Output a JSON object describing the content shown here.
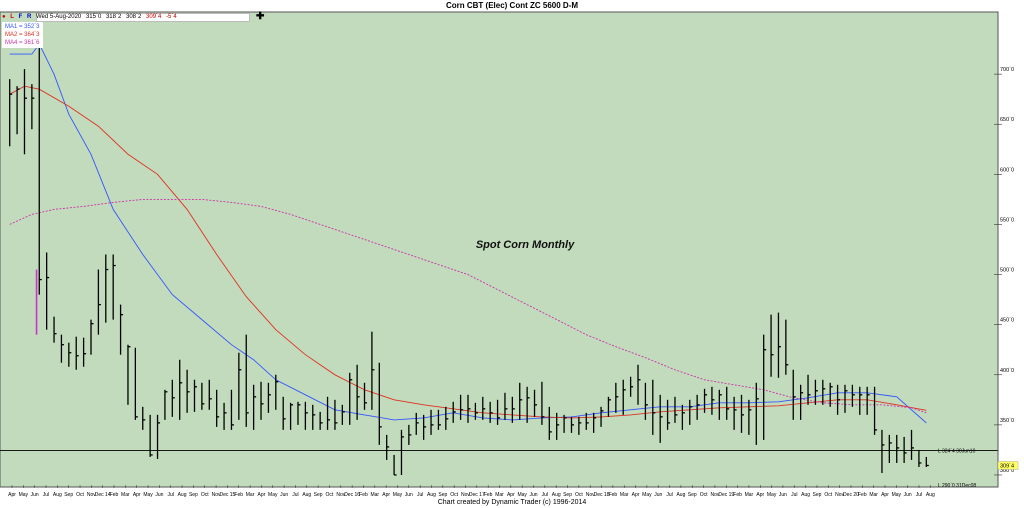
{
  "title": "Corn CBT (Elec) Cont ZC 5600 D-M",
  "footer": "Chart created by Dynamic Trader  (c) 1996-2014",
  "toolbar": {
    "dot": "●",
    "l": "L",
    "f": "F",
    "r": "R",
    "crosshair": "✚"
  },
  "header_info": {
    "date": "Wed 5-Aug-2020",
    "open": "315`0",
    "high": "318`2",
    "low": "308`2",
    "close": "309`4",
    "change": "-5`4"
  },
  "ma_legend": [
    {
      "label": "MA1 = 352`3",
      "color": "#3355ff"
    },
    {
      "label": "MA2 = 364`3",
      "color": "#e03020"
    },
    {
      "label": "MA4 = 361`6",
      "color": "#cc33aa"
    }
  ],
  "annotation": "Spot Corn Monthly",
  "reference_levels": [
    {
      "value": 324.5,
      "label": "L 324`4 30Jun10"
    },
    {
      "value": 290,
      "label": "L 290`0 31Dec08"
    }
  ],
  "last_price_label": "309`4",
  "chart_data": {
    "type": "ohlc",
    "title": "Corn CBT (Elec) Cont ZC 5600 D-M",
    "ylim": [
      290,
      760
    ],
    "y_ticks": [
      {
        "value": 700,
        "label": "700`0"
      },
      {
        "value": 650,
        "label": "650`0"
      },
      {
        "value": 600,
        "label": "600`0"
      },
      {
        "value": 550,
        "label": "550`0"
      },
      {
        "value": 500,
        "label": "500`0"
      },
      {
        "value": 450,
        "label": "450`0"
      },
      {
        "value": 400,
        "label": "400`0"
      },
      {
        "value": 350,
        "label": "350`0"
      },
      {
        "value": 300,
        "label": "300`0"
      }
    ],
    "x_labels": [
      "Apr",
      "May",
      "Jun",
      "Jul",
      "Aug",
      "Sep",
      "Oct",
      "Nov",
      "Dec 14",
      "Feb",
      "Mar",
      "Apr",
      "May",
      "Jun",
      "Jul",
      "Aug",
      "Sep",
      "Oct",
      "Nov",
      "Dec 15",
      "Feb",
      "Mar",
      "Apr",
      "May",
      "Jun",
      "Jul",
      "Aug",
      "Sep",
      "Oct",
      "Nov",
      "Dec 16",
      "Feb",
      "Mar",
      "Apr",
      "May",
      "Jun",
      "Jul",
      "Aug",
      "Sep",
      "Oct",
      "Nov",
      "Dec 17",
      "Feb",
      "Mar",
      "Apr",
      "May",
      "Jun",
      "Jul",
      "Aug",
      "Sep",
      "Oct",
      "Nov",
      "Dec 18",
      "Feb",
      "Mar",
      "Apr",
      "May",
      "Jun",
      "Jul",
      "Aug",
      "Sep",
      "Oct",
      "Nov",
      "Dec 19",
      "Feb",
      "Mar",
      "Apr",
      "May",
      "Jun",
      "Jul",
      "Aug",
      "Sep",
      "Oct",
      "Nov",
      "Dec 20",
      "Feb",
      "Mar",
      "Apr",
      "May",
      "Jun",
      "Jul",
      "Aug"
    ],
    "bars": [
      {
        "x": 0,
        "h": 695,
        "l": 628,
        "c": 680
      },
      {
        "x": 1,
        "h": 688,
        "l": 640,
        "c": 685
      },
      {
        "x": 2,
        "h": 705,
        "l": 620,
        "c": 676
      },
      {
        "x": 3,
        "h": 690,
        "l": 645,
        "c": 676
      },
      {
        "x": 4,
        "h": 730,
        "l": 480,
        "c": 495
      },
      {
        "x": 5,
        "h": 522,
        "l": 445,
        "c": 497
      },
      {
        "x": 6,
        "h": 458,
        "l": 432,
        "c": 441
      },
      {
        "x": 7,
        "h": 440,
        "l": 412,
        "c": 430
      },
      {
        "x": 8,
        "h": 432,
        "l": 408,
        "c": 422
      },
      {
        "x": 9,
        "h": 438,
        "l": 405,
        "c": 419
      },
      {
        "x": 10,
        "h": 437,
        "l": 408,
        "c": 421
      },
      {
        "x": 11,
        "h": 455,
        "l": 420,
        "c": 451
      },
      {
        "x": 12,
        "h": 505,
        "l": 440,
        "c": 470
      },
      {
        "x": 13,
        "h": 520,
        "l": 452,
        "c": 505
      },
      {
        "x": 14,
        "h": 520,
        "l": 455,
        "c": 509
      },
      {
        "x": 15,
        "h": 470,
        "l": 420,
        "c": 460
      },
      {
        "x": 16,
        "h": 430,
        "l": 370,
        "c": 428
      },
      {
        "x": 17,
        "h": 427,
        "l": 355,
        "c": 358
      },
      {
        "x": 18,
        "h": 368,
        "l": 345,
        "c": 355
      },
      {
        "x": 19,
        "h": 360,
        "l": 318,
        "c": 320
      },
      {
        "x": 20,
        "h": 360,
        "l": 316,
        "c": 352
      },
      {
        "x": 21,
        "h": 385,
        "l": 355,
        "c": 383
      },
      {
        "x": 22,
        "h": 395,
        "l": 358,
        "c": 377
      },
      {
        "x": 23,
        "h": 415,
        "l": 355,
        "c": 392
      },
      {
        "x": 24,
        "h": 405,
        "l": 362,
        "c": 383
      },
      {
        "x": 25,
        "h": 395,
        "l": 363,
        "c": 388
      },
      {
        "x": 26,
        "h": 392,
        "l": 365,
        "c": 371
      },
      {
        "x": 27,
        "h": 395,
        "l": 365,
        "c": 376
      },
      {
        "x": 28,
        "h": 385,
        "l": 348,
        "c": 358
      },
      {
        "x": 29,
        "h": 372,
        "l": 345,
        "c": 362
      },
      {
        "x": 30,
        "h": 385,
        "l": 345,
        "c": 350
      },
      {
        "x": 31,
        "h": 422,
        "l": 355,
        "c": 405
      },
      {
        "x": 32,
        "h": 440,
        "l": 348,
        "c": 362
      },
      {
        "x": 33,
        "h": 390,
        "l": 345,
        "c": 378
      },
      {
        "x": 34,
        "h": 393,
        "l": 355,
        "c": 371
      },
      {
        "x": 35,
        "h": 392,
        "l": 362,
        "c": 380
      },
      {
        "x": 36,
        "h": 400,
        "l": 365,
        "c": 393
      },
      {
        "x": 37,
        "h": 378,
        "l": 345,
        "c": 356
      },
      {
        "x": 38,
        "h": 372,
        "l": 345,
        "c": 370
      },
      {
        "x": 39,
        "h": 373,
        "l": 350,
        "c": 370
      },
      {
        "x": 40,
        "h": 373,
        "l": 345,
        "c": 362
      },
      {
        "x": 41,
        "h": 370,
        "l": 345,
        "c": 360
      },
      {
        "x": 42,
        "h": 363,
        "l": 345,
        "c": 352
      },
      {
        "x": 43,
        "h": 378,
        "l": 345,
        "c": 355
      },
      {
        "x": 44,
        "h": 375,
        "l": 345,
        "c": 352
      },
      {
        "x": 45,
        "h": 370,
        "l": 350,
        "c": 363
      },
      {
        "x": 46,
        "h": 402,
        "l": 350,
        "c": 395
      },
      {
        "x": 47,
        "h": 410,
        "l": 355,
        "c": 378
      },
      {
        "x": 48,
        "h": 392,
        "l": 365,
        "c": 372
      },
      {
        "x": 49,
        "h": 443,
        "l": 365,
        "c": 405
      },
      {
        "x": 50,
        "h": 412,
        "l": 330,
        "c": 348
      },
      {
        "x": 51,
        "h": 340,
        "l": 315,
        "c": 328
      },
      {
        "x": 52,
        "h": 320,
        "l": 300,
        "c": 300
      },
      {
        "x": 53,
        "h": 345,
        "l": 300,
        "c": 338
      },
      {
        "x": 54,
        "h": 350,
        "l": 330,
        "c": 340
      },
      {
        "x": 55,
        "h": 362,
        "l": 340,
        "c": 352
      },
      {
        "x": 56,
        "h": 360,
        "l": 335,
        "c": 348
      },
      {
        "x": 57,
        "h": 365,
        "l": 340,
        "c": 350
      },
      {
        "x": 58,
        "h": 365,
        "l": 345,
        "c": 350
      },
      {
        "x": 59,
        "h": 368,
        "l": 345,
        "c": 356
      },
      {
        "x": 60,
        "h": 373,
        "l": 352,
        "c": 363
      },
      {
        "x": 61,
        "h": 380,
        "l": 355,
        "c": 365
      },
      {
        "x": 62,
        "h": 380,
        "l": 352,
        "c": 366
      },
      {
        "x": 63,
        "h": 372,
        "l": 355,
        "c": 362
      },
      {
        "x": 64,
        "h": 378,
        "l": 355,
        "c": 366
      },
      {
        "x": 65,
        "h": 373,
        "l": 352,
        "c": 362
      },
      {
        "x": 66,
        "h": 375,
        "l": 350,
        "c": 357
      },
      {
        "x": 67,
        "h": 382,
        "l": 355,
        "c": 366
      },
      {
        "x": 68,
        "h": 378,
        "l": 352,
        "c": 366
      },
      {
        "x": 69,
        "h": 392,
        "l": 355,
        "c": 375
      },
      {
        "x": 70,
        "h": 388,
        "l": 352,
        "c": 377
      },
      {
        "x": 71,
        "h": 385,
        "l": 358,
        "c": 370
      },
      {
        "x": 72,
        "h": 393,
        "l": 350,
        "c": 358
      },
      {
        "x": 73,
        "h": 368,
        "l": 335,
        "c": 343
      },
      {
        "x": 74,
        "h": 362,
        "l": 335,
        "c": 350
      },
      {
        "x": 75,
        "h": 360,
        "l": 342,
        "c": 357
      },
      {
        "x": 76,
        "h": 358,
        "l": 342,
        "c": 350
      },
      {
        "x": 77,
        "h": 358,
        "l": 340,
        "c": 352
      },
      {
        "x": 78,
        "h": 362,
        "l": 345,
        "c": 352
      },
      {
        "x": 79,
        "h": 362,
        "l": 342,
        "c": 357
      },
      {
        "x": 80,
        "h": 368,
        "l": 348,
        "c": 364
      },
      {
        "x": 81,
        "h": 378,
        "l": 358,
        "c": 375
      },
      {
        "x": 82,
        "h": 392,
        "l": 362,
        "c": 378
      },
      {
        "x": 83,
        "h": 395,
        "l": 360,
        "c": 385
      },
      {
        "x": 84,
        "h": 398,
        "l": 378,
        "c": 388
      },
      {
        "x": 85,
        "h": 410,
        "l": 370,
        "c": 395
      },
      {
        "x": 86,
        "h": 392,
        "l": 355,
        "c": 370
      },
      {
        "x": 87,
        "h": 395,
        "l": 340,
        "c": 362
      },
      {
        "x": 88,
        "h": 380,
        "l": 332,
        "c": 358
      },
      {
        "x": 89,
        "h": 375,
        "l": 345,
        "c": 352
      },
      {
        "x": 90,
        "h": 378,
        "l": 352,
        "c": 360
      },
      {
        "x": 91,
        "h": 370,
        "l": 345,
        "c": 362
      },
      {
        "x": 92,
        "h": 375,
        "l": 350,
        "c": 368
      },
      {
        "x": 93,
        "h": 380,
        "l": 355,
        "c": 370
      },
      {
        "x": 94,
        "h": 386,
        "l": 362,
        "c": 380
      },
      {
        "x": 95,
        "h": 388,
        "l": 360,
        "c": 375
      },
      {
        "x": 96,
        "h": 385,
        "l": 355,
        "c": 380
      },
      {
        "x": 97,
        "h": 388,
        "l": 355,
        "c": 366
      },
      {
        "x": 98,
        "h": 378,
        "l": 345,
        "c": 365
      },
      {
        "x": 99,
        "h": 380,
        "l": 342,
        "c": 360
      },
      {
        "x": 100,
        "h": 375,
        "l": 340,
        "c": 365
      },
      {
        "x": 101,
        "h": 392,
        "l": 330,
        "c": 376
      },
      {
        "x": 102,
        "h": 440,
        "l": 335,
        "c": 425
      },
      {
        "x": 103,
        "h": 460,
        "l": 398,
        "c": 420
      },
      {
        "x": 104,
        "h": 462,
        "l": 397,
        "c": 428
      },
      {
        "x": 105,
        "h": 455,
        "l": 400,
        "c": 410
      },
      {
        "x": 106,
        "h": 405,
        "l": 355,
        "c": 378
      },
      {
        "x": 107,
        "h": 390,
        "l": 355,
        "c": 382
      },
      {
        "x": 108,
        "h": 400,
        "l": 370,
        "c": 380
      },
      {
        "x": 109,
        "h": 395,
        "l": 370,
        "c": 384
      },
      {
        "x": 110,
        "h": 395,
        "l": 370,
        "c": 386
      },
      {
        "x": 111,
        "h": 392,
        "l": 368,
        "c": 388
      },
      {
        "x": 112,
        "h": 390,
        "l": 360,
        "c": 375
      },
      {
        "x": 113,
        "h": 390,
        "l": 362,
        "c": 384
      },
      {
        "x": 114,
        "h": 390,
        "l": 368,
        "c": 380
      },
      {
        "x": 115,
        "h": 388,
        "l": 360,
        "c": 380
      },
      {
        "x": 116,
        "h": 388,
        "l": 360,
        "c": 380
      },
      {
        "x": 117,
        "h": 388,
        "l": 340,
        "c": 345
      },
      {
        "x": 118,
        "h": 345,
        "l": 302,
        "c": 330
      },
      {
        "x": 119,
        "h": 340,
        "l": 312,
        "c": 332
      },
      {
        "x": 120,
        "h": 340,
        "l": 312,
        "c": 327
      },
      {
        "x": 121,
        "h": 338,
        "l": 312,
        "c": 322
      },
      {
        "x": 122,
        "h": 345,
        "l": 315,
        "c": 327
      },
      {
        "x": 123,
        "h": 325,
        "l": 308,
        "c": 312
      },
      {
        "x": 124,
        "h": 318,
        "l": 308,
        "c": 309.5
      }
    ],
    "ma_series": [
      {
        "label": "MA1 = 352`3",
        "color": "#3355ff",
        "dashed": false,
        "points": [
          [
            0,
            720
          ],
          [
            3,
            720
          ],
          [
            4,
            730
          ],
          [
            6,
            700
          ],
          [
            8,
            660
          ],
          [
            11,
            620
          ],
          [
            14,
            565
          ],
          [
            18,
            520
          ],
          [
            22,
            480
          ],
          [
            26,
            455
          ],
          [
            30,
            430
          ],
          [
            33,
            415
          ],
          [
            36,
            395
          ],
          [
            40,
            380
          ],
          [
            44,
            365
          ],
          [
            48,
            360
          ],
          [
            52,
            355
          ],
          [
            56,
            357
          ],
          [
            60,
            362
          ],
          [
            64,
            357
          ],
          [
            68,
            355
          ],
          [
            72,
            357
          ],
          [
            76,
            358
          ],
          [
            80,
            362
          ],
          [
            84,
            365
          ],
          [
            88,
            368
          ],
          [
            92,
            368
          ],
          [
            96,
            372
          ],
          [
            100,
            372
          ],
          [
            104,
            373
          ],
          [
            108,
            377
          ],
          [
            112,
            382
          ],
          [
            116,
            382
          ],
          [
            120,
            378
          ],
          [
            124,
            352
          ]
        ]
      },
      {
        "label": "MA2 = 364`3",
        "color": "#e03020",
        "dashed": false,
        "points": [
          [
            0,
            680
          ],
          [
            2,
            688
          ],
          [
            4,
            685
          ],
          [
            8,
            668
          ],
          [
            12,
            648
          ],
          [
            16,
            620
          ],
          [
            20,
            600
          ],
          [
            24,
            565
          ],
          [
            28,
            520
          ],
          [
            32,
            478
          ],
          [
            36,
            445
          ],
          [
            40,
            420
          ],
          [
            44,
            400
          ],
          [
            48,
            385
          ],
          [
            52,
            375
          ],
          [
            56,
            370
          ],
          [
            60,
            366
          ],
          [
            64,
            362
          ],
          [
            68,
            360
          ],
          [
            72,
            358
          ],
          [
            76,
            357
          ],
          [
            80,
            358
          ],
          [
            84,
            360
          ],
          [
            88,
            363
          ],
          [
            92,
            365
          ],
          [
            96,
            367
          ],
          [
            100,
            368
          ],
          [
            104,
            369
          ],
          [
            108,
            372
          ],
          [
            112,
            375
          ],
          [
            116,
            375
          ],
          [
            120,
            370
          ],
          [
            124,
            364.5
          ]
        ]
      },
      {
        "label": "MA4 = 361`6",
        "color": "#cc33aa",
        "dashed": true,
        "points": [
          [
            0,
            550
          ],
          [
            3,
            560
          ],
          [
            6,
            565
          ],
          [
            10,
            568
          ],
          [
            14,
            572
          ],
          [
            18,
            575
          ],
          [
            22,
            575
          ],
          [
            26,
            575
          ],
          [
            30,
            572
          ],
          [
            34,
            568
          ],
          [
            38,
            560
          ],
          [
            42,
            550
          ],
          [
            46,
            540
          ],
          [
            50,
            530
          ],
          [
            54,
            520
          ],
          [
            58,
            510
          ],
          [
            62,
            500
          ],
          [
            66,
            485
          ],
          [
            70,
            470
          ],
          [
            74,
            455
          ],
          [
            78,
            440
          ],
          [
            82,
            428
          ],
          [
            86,
            417
          ],
          [
            90,
            405
          ],
          [
            94,
            395
          ],
          [
            98,
            390
          ],
          [
            102,
            385
          ],
          [
            106,
            377
          ],
          [
            110,
            372
          ],
          [
            114,
            370
          ],
          [
            118,
            370
          ],
          [
            122,
            367
          ],
          [
            124,
            362
          ]
        ]
      }
    ],
    "range_marker": {
      "x": 3.5,
      "from": 505,
      "to": 440,
      "color": "#cc33cc"
    }
  },
  "colors": {
    "plot_bg": "#c2dbbd",
    "price_bars": "#000000",
    "last_price_bg": "#ffff66"
  }
}
